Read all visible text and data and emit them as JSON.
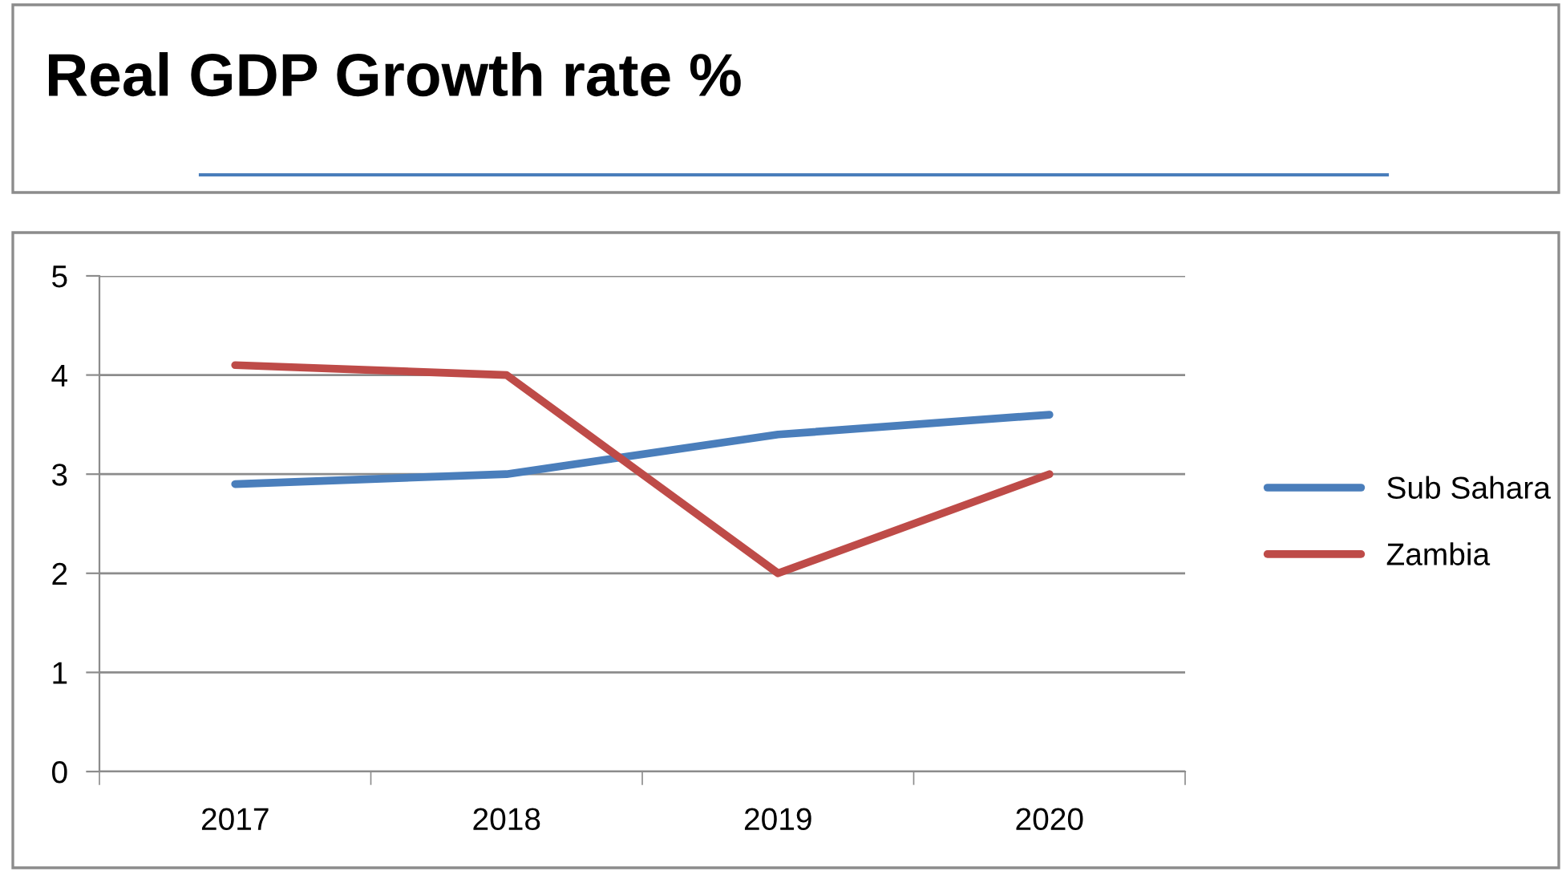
{
  "chart_data": {
    "type": "line",
    "title": "Real GDP Growth rate %",
    "categories": [
      "2017",
      "2018",
      "2019",
      "2020"
    ],
    "series": [
      {
        "name": "Sub Sahara",
        "color": "#4a7ebb",
        "values": [
          2.9,
          3.0,
          3.4,
          3.6
        ]
      },
      {
        "name": "Zambia",
        "color": "#be4b48",
        "values": [
          4.1,
          4.0,
          2.0,
          3.0
        ]
      }
    ],
    "ylim": [
      0,
      5
    ],
    "yticks": [
      0,
      1,
      2,
      3,
      4,
      5
    ],
    "grid": "y",
    "legend": "right",
    "marker": "none",
    "line_style": "solid"
  }
}
